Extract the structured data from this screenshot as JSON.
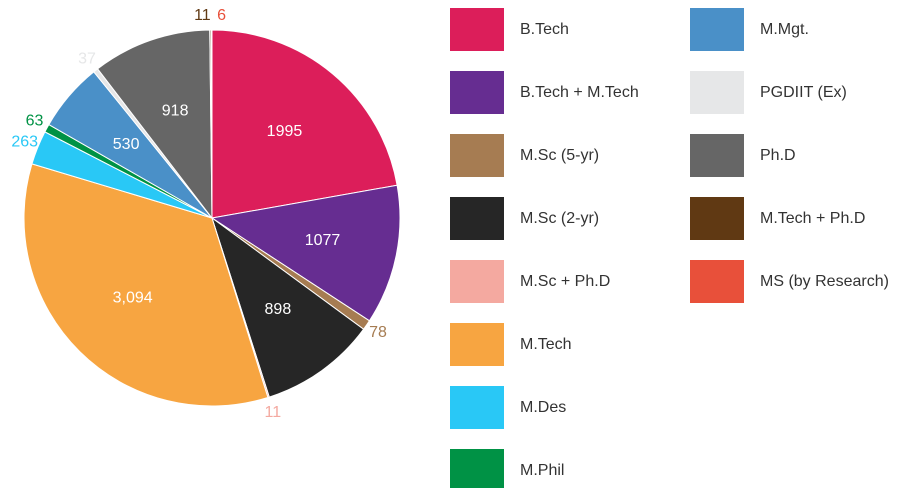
{
  "chart_data": {
    "type": "pie",
    "categories": [
      "B.Tech",
      "B.Tech + M.Tech",
      "M.Sc (5-yr)",
      "M.Sc (2-yr)",
      "M.Sc + Ph.D",
      "M.Tech",
      "M.Des",
      "M.Phil",
      "M.Mgt.",
      "PGDIIT (Ex)",
      "Ph.D",
      "M.Tech + Ph.D",
      "MS (by Research)"
    ],
    "values": [
      1995,
      1077,
      78,
      898,
      11,
      3094,
      263,
      63,
      530,
      37,
      918,
      11,
      6
    ],
    "value_labels": [
      "1995",
      "1077",
      "78",
      "898",
      "11",
      "3,094",
      "263",
      "63",
      "530",
      "37",
      "918",
      "11",
      "6"
    ],
    "colors": [
      "#dc1e5a",
      "#662d91",
      "#a67c52",
      "#262626",
      "#f4a9a0",
      "#f7a541",
      "#29c8f6",
      "#009245",
      "#4a90c8",
      "#e6e7e8",
      "#666666",
      "#603913",
      "#e8503a"
    ]
  }
}
